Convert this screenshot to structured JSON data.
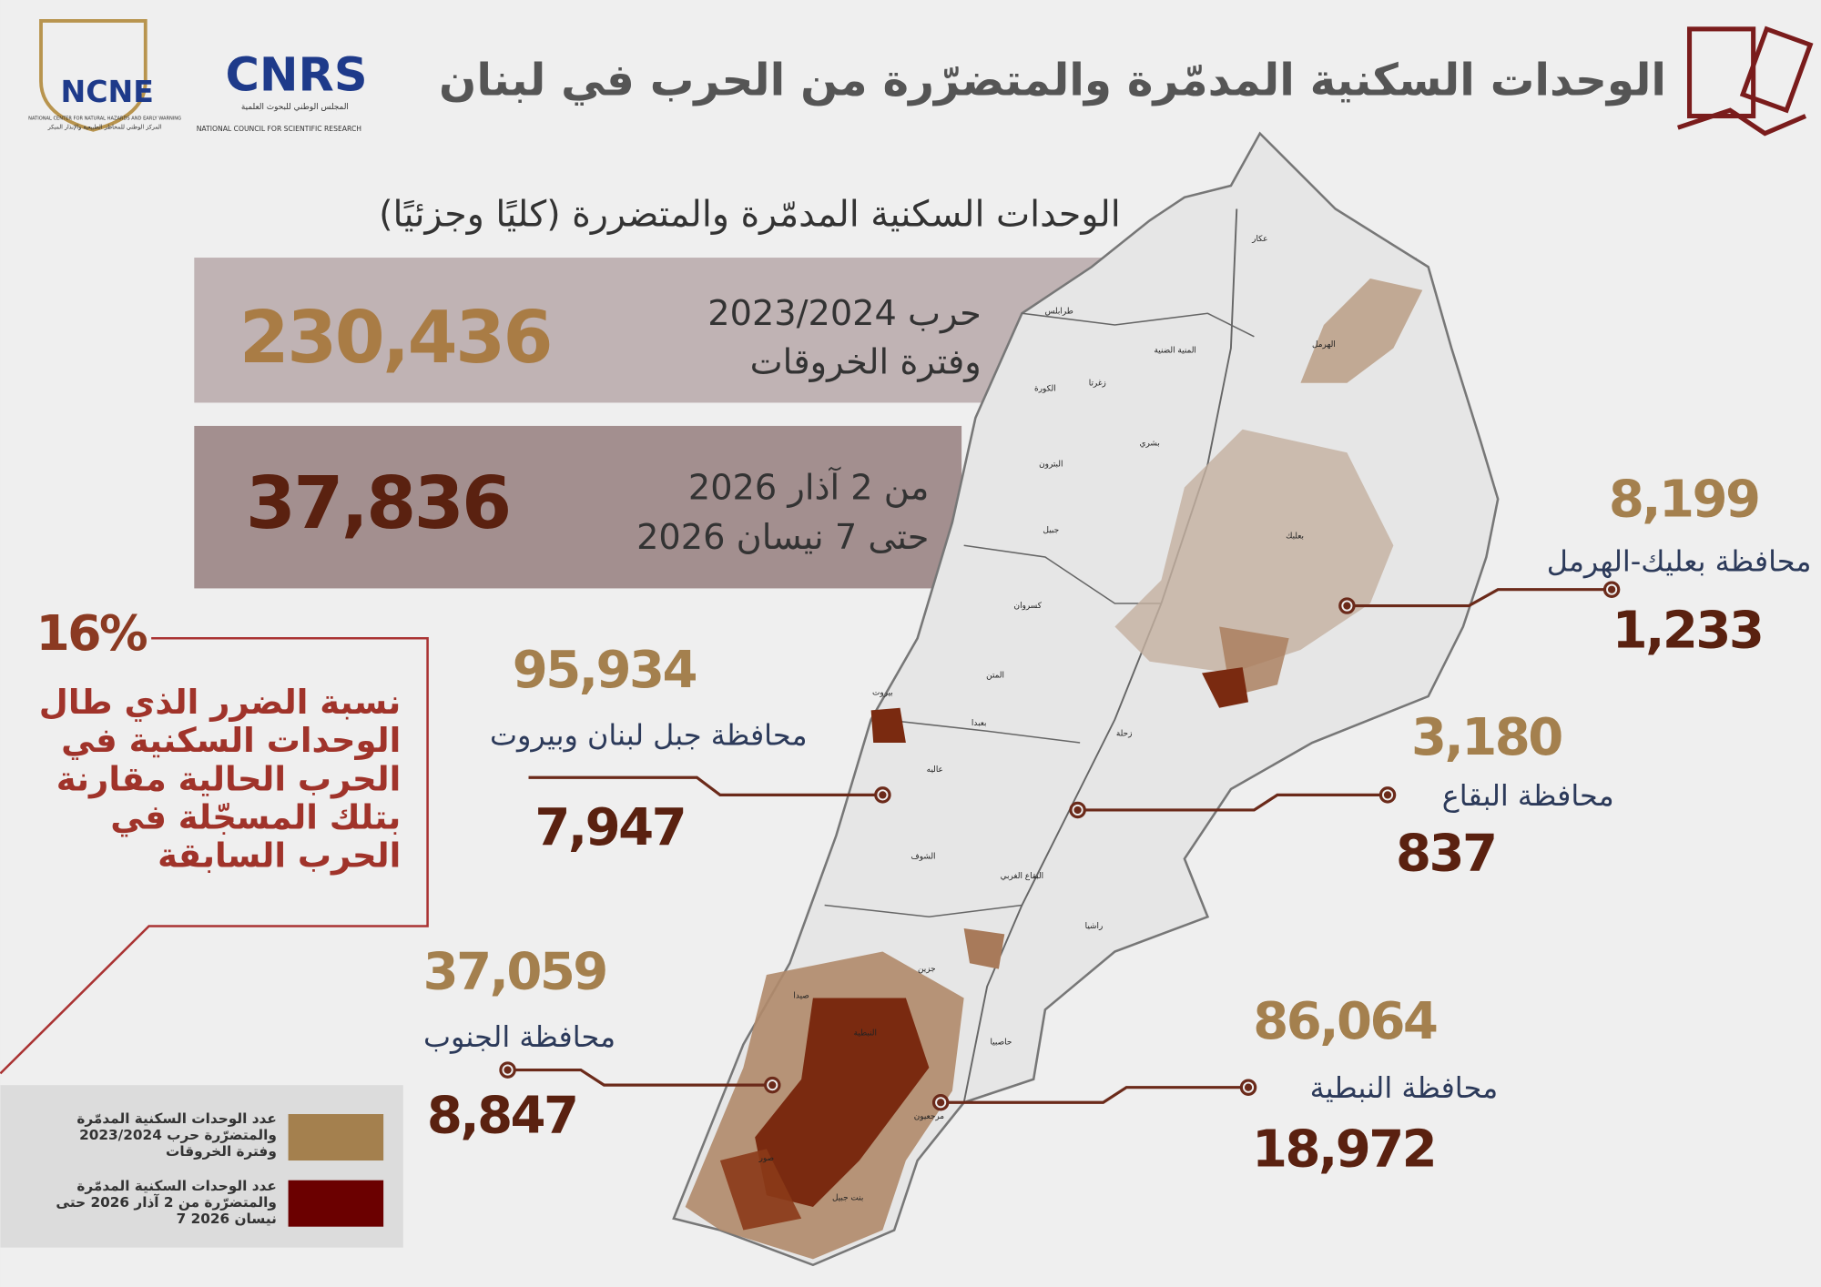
{
  "header": {
    "title": "الوحدات السكنية المدمّرة والمتضرّرة من الحرب في لبنان",
    "logos": {
      "ncne": "NCNE",
      "ncne_en": "NATIONAL CENTER FOR NATURAL HAZARDS AND EARLY WARNING",
      "ncne_ar": "المركز الوطني للمخاطر الطبيعية والإنذار المبكر",
      "cnrs": "CNRS",
      "cnrs_ar": "المجلس الوطني للبحوث العلمية",
      "cnrs_en": "NATIONAL COUNCIL FOR SCIENTIFIC RESEARCH"
    }
  },
  "subtitle": "الوحدات السكنية المدمّرة والمتضررة (كليًا وجزئيًا)",
  "totals": [
    {
      "value": "230,436",
      "lines": [
        "حرب 2023/2024",
        "وفترة الخروقات"
      ]
    },
    {
      "value": "37,836",
      "lines": [
        "من 2 آذار 2026",
        "حتى 7 نيسان 2026"
      ]
    }
  ],
  "ratio": {
    "value": "16%",
    "lines": [
      "نسبة الضرر الذي طال",
      "الوحدات السكنية في",
      "الحرب الحالية مقارنة",
      "بتلك المسجّلة في",
      "الحرب السابقة"
    ]
  },
  "governorates": [
    {
      "previous": "8,199",
      "name": "محافظة بعليك-الهرمل",
      "current": "1,233"
    },
    {
      "previous": "95,934",
      "name": "محافظة جبل لبنان وبيروت",
      "current": "7,947"
    },
    {
      "previous": "3,180",
      "name": "محافظة البقاع",
      "current": "837"
    },
    {
      "previous": "37,059",
      "name": "محافظة الجنوب",
      "current": "8,847"
    },
    {
      "previous": "86,064",
      "name": "محافظة النبطية",
      "current": "18,972"
    }
  ],
  "legend": [
    {
      "lines": [
        "عدد الوحدات السكنية المدمّرة",
        "والمتضرّرة حرب 2023/2024",
        "وفترة الخروقات"
      ]
    },
    {
      "lines": [
        "عدد الوحدات السكنية المدمّرة",
        "والمتضرّرة من 2 آذار 2026 حتى",
        "7 نيسان 2026"
      ]
    }
  ],
  "map_labels": [
    "عكار",
    "الهرمل",
    "بعلبك",
    "زحلة",
    "البقاع الغربي",
    "راشيا",
    "حاصبيا",
    "مرجعيون",
    "بنت جبيل",
    "صور",
    "النبطية",
    "صيدا",
    "جزين",
    "الشوف",
    "عاليه",
    "بعبدا",
    "المتن",
    "كسروان",
    "جبيل",
    "البترون",
    "الكورة",
    "زغرتا",
    "المنية الضنية",
    "طرابلس",
    "بشري",
    "بيروت"
  ]
}
